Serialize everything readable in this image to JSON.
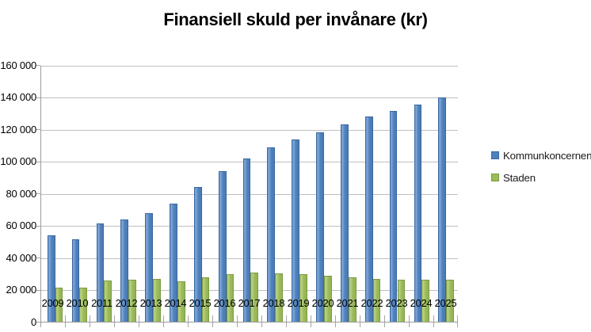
{
  "chart_data": {
    "type": "bar",
    "title": "Finansiell skuld per invånare (kr)",
    "categories": [
      "2009",
      "2010",
      "2011",
      "2012",
      "2013",
      "2014",
      "2015",
      "2016",
      "2017",
      "2018",
      "2019",
      "2020",
      "2021",
      "2022",
      "2023",
      "2024",
      "2025"
    ],
    "series": [
      {
        "name": "Kommunkoncernen",
        "color": "#4f81bd",
        "values": [
          54000,
          51500,
          61500,
          64000,
          68000,
          74000,
          84000,
          94000,
          102000,
          109000,
          114000,
          118500,
          123000,
          128000,
          131500,
          135500,
          140000
        ]
      },
      {
        "name": "Staden",
        "color": "#9bbb59",
        "values": [
          21500,
          21500,
          26000,
          26500,
          27000,
          25500,
          28000,
          30000,
          31000,
          30500,
          30000,
          29000,
          28000,
          27000,
          26500,
          26500,
          26500
        ]
      }
    ],
    "xlabel": "",
    "ylabel": "",
    "ylim": [
      0,
      160000
    ],
    "ytick_step": 20000,
    "ytick_labels": [
      "0",
      "20 000",
      "40 000",
      "60 000",
      "80 000",
      "100 000",
      "120 000",
      "140 000",
      "160 000"
    ],
    "grid": true,
    "legend_position": "right"
  },
  "colors": {
    "series_blue": "#4f81bd",
    "series_green": "#9bbb59",
    "gridline": "#bfbfbf",
    "axis": "#9b9b9b",
    "text": "#000000"
  }
}
